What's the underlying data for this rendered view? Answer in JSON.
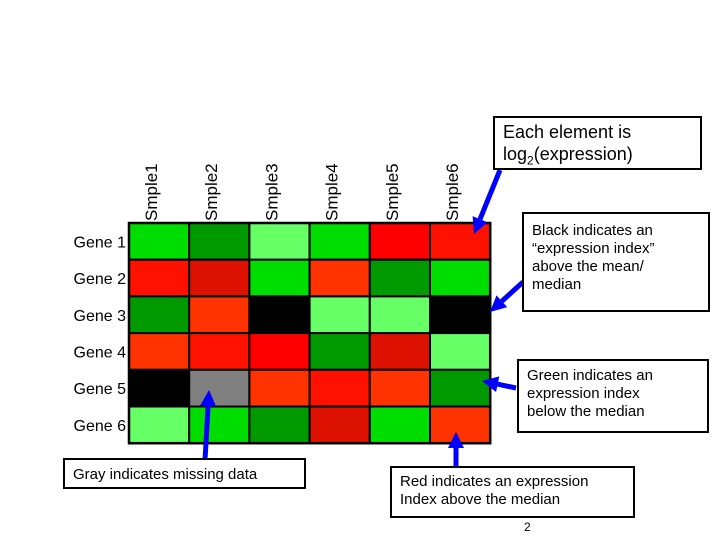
{
  "heatmap": {
    "samples": [
      "Smple1",
      "Smple2",
      "Smple3",
      "Smple4",
      "Smple5",
      "Smple6"
    ],
    "genes": [
      "Gene 1",
      "Gene 2",
      "Gene 3",
      "Gene 4",
      "Gene 5",
      "Gene 6"
    ],
    "cell_colors": [
      [
        "#00dd00",
        "#009900",
        "#66ff66",
        "#00dd00",
        "#ff0000",
        "#ff1100"
      ],
      [
        "#ff1100",
        "#dd1100",
        "#00dd00",
        "#ff3300",
        "#009900",
        "#00dd00"
      ],
      [
        "#009900",
        "#ff3300",
        "#000000",
        "#66ff66",
        "#66ff66",
        "#000000"
      ],
      [
        "#ff3300",
        "#ff1100",
        "#ff0000",
        "#009900",
        "#dd1100",
        "#66ff66"
      ],
      [
        "#000000",
        "#808080",
        "#ff3300",
        "#ff1100",
        "#ff3300",
        "#009900"
      ],
      [
        "#66ff66",
        "#00dd00",
        "#009900",
        "#dd1100",
        "#00dd00",
        "#ff3300"
      ]
    ]
  },
  "callouts": {
    "each_element": {
      "line1": "Each element is",
      "line2_prefix": "log",
      "line2_sub": "2",
      "line2_suffix": "(expression)"
    },
    "black": {
      "line1": "Black indicates an",
      "line2": "“expression index”",
      "line3": "above the mean/",
      "line4": "median"
    },
    "green": {
      "line1": "Green indicates an",
      "line2": "expression index",
      "line3": "below the median"
    },
    "red": {
      "line1": "Red indicates an expression",
      "line2": "Index above the median"
    },
    "gray": {
      "line1": "Gray indicates missing data"
    }
  },
  "page_number": "2",
  "colors": {
    "arrow": "#0000ff",
    "grid_border": "#000000"
  }
}
